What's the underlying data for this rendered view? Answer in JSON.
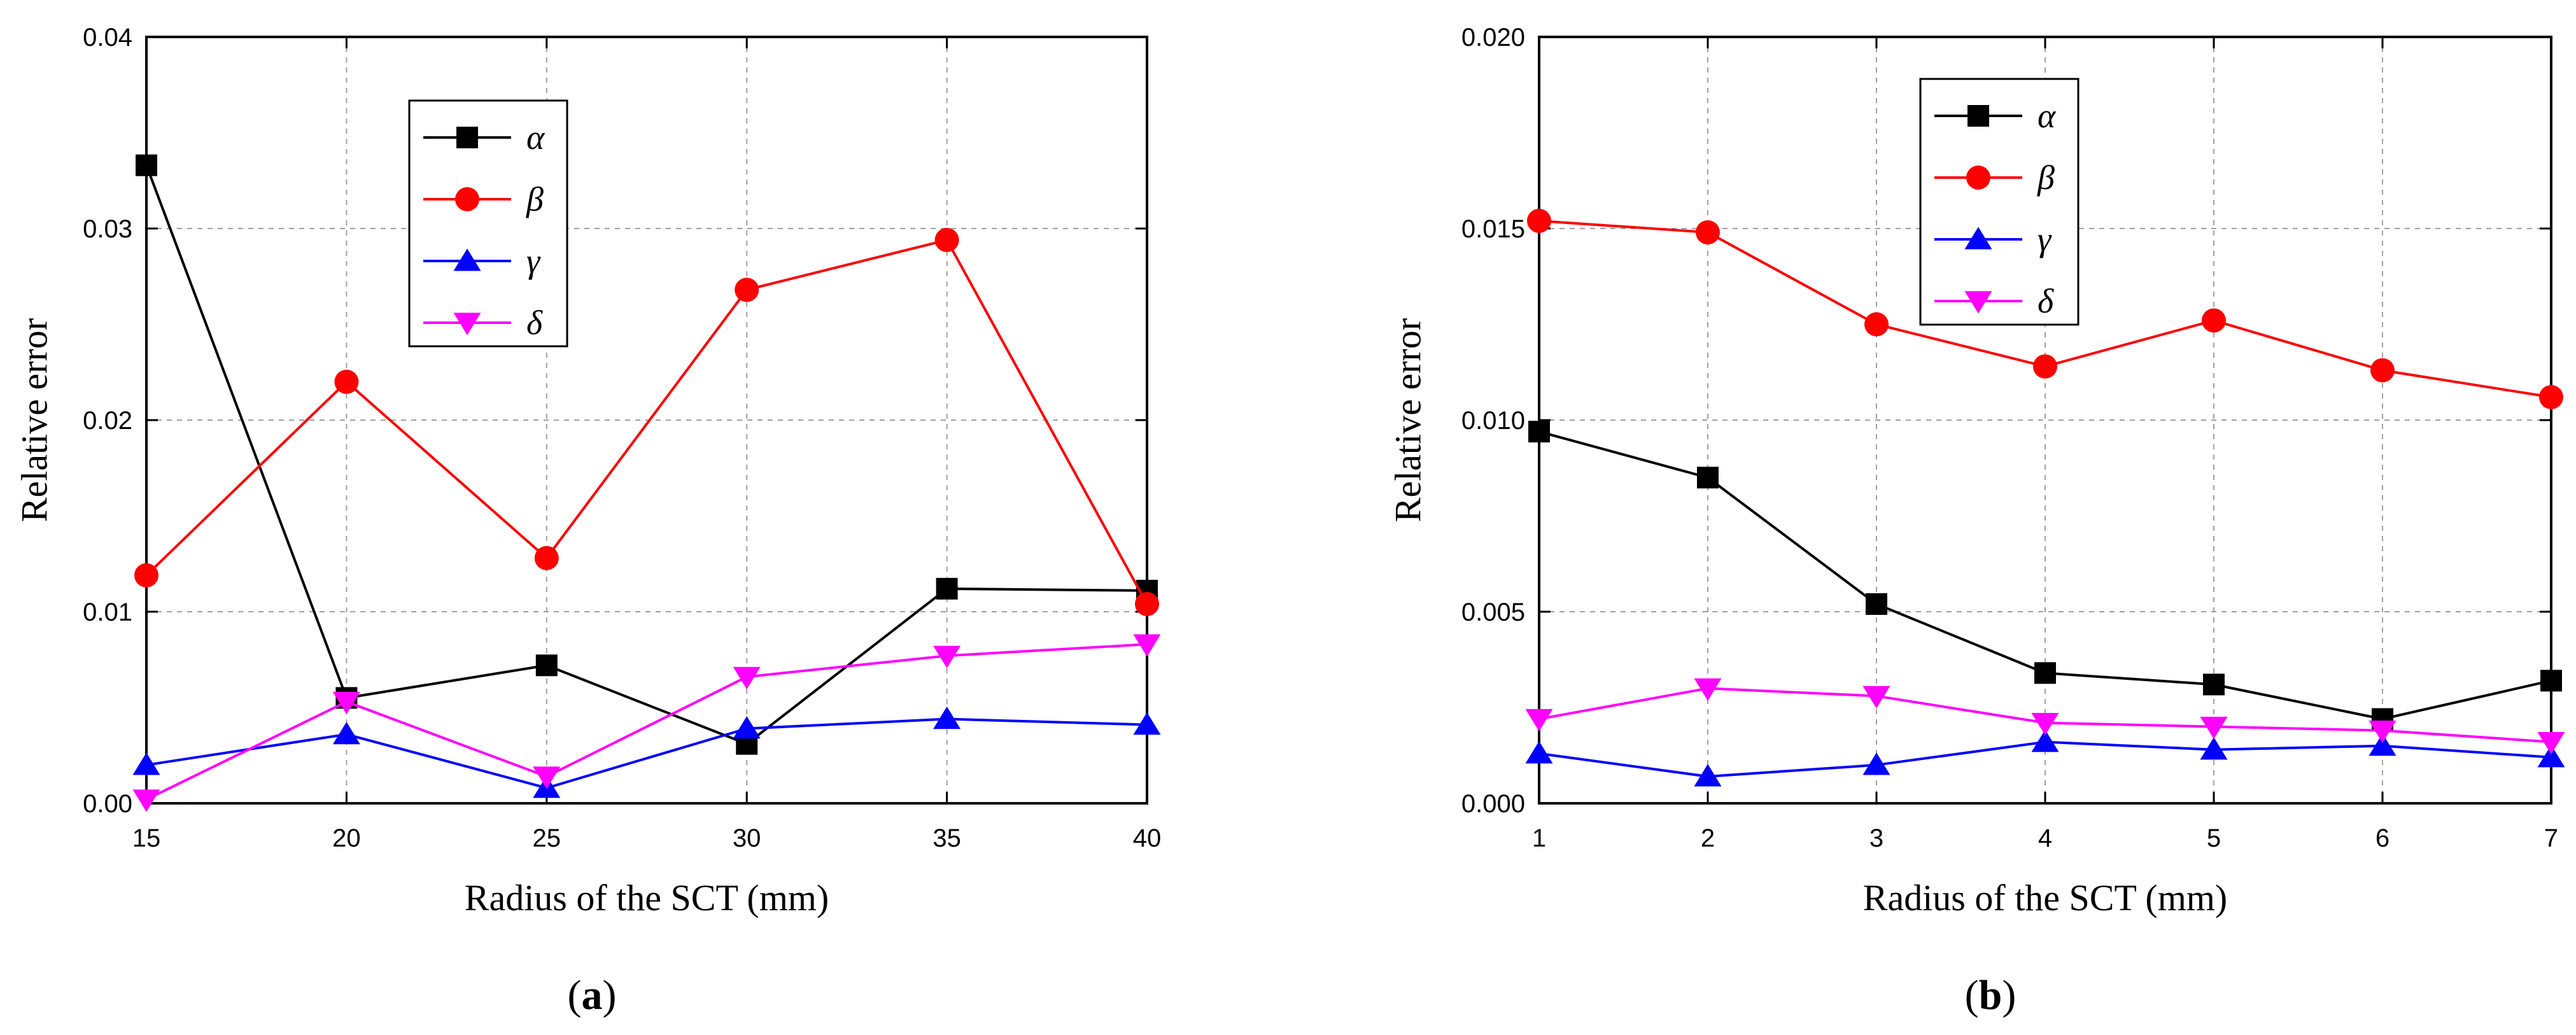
{
  "chart_data": [
    {
      "type": "line",
      "panel": "a",
      "caption": "(a)",
      "caption_letter": "a",
      "xlabel": "Radius of the SCT (mm)",
      "ylabel": "Relative error",
      "xlim": [
        15,
        40
      ],
      "ylim": [
        0,
        0.04
      ],
      "x_ticks": [
        15,
        20,
        25,
        30,
        35,
        40
      ],
      "x_tick_labels": [
        "15",
        "20",
        "25",
        "30",
        "35",
        "40"
      ],
      "y_ticks": [
        0,
        0.01,
        0.02,
        0.03,
        0.04
      ],
      "y_tick_labels": [
        "0.00",
        "0.01",
        "0.02",
        "0.03",
        "0.04"
      ],
      "grid": true,
      "legend_position": "top-left",
      "x": [
        15,
        20,
        25,
        30,
        35,
        40
      ],
      "series": [
        {
          "name": "α",
          "marker": "square",
          "color": "#000000",
          "values": [
            0.0333,
            0.0055,
            0.0072,
            0.0031,
            0.0112,
            0.0111
          ]
        },
        {
          "name": "β",
          "marker": "circle",
          "color": "#ff0000",
          "values": [
            0.0119,
            0.022,
            0.0128,
            0.0268,
            0.0294,
            0.0104
          ]
        },
        {
          "name": "γ",
          "marker": "triangle-up",
          "color": "#0000ff",
          "values": [
            0.002,
            0.0036,
            0.0008,
            0.0039,
            0.0044,
            0.0041
          ]
        },
        {
          "name": "δ",
          "marker": "triangle-down",
          "color": "#ff00ff",
          "values": [
            0.0002,
            0.0053,
            0.0014,
            0.0066,
            0.0077,
            0.0083
          ]
        }
      ]
    },
    {
      "type": "line",
      "panel": "b",
      "caption": "(b)",
      "caption_letter": "b",
      "xlabel": "Radius of the SCT (mm)",
      "ylabel": "Relative error",
      "xlim": [
        1,
        7
      ],
      "ylim": [
        0,
        0.02
      ],
      "x_ticks": [
        1,
        2,
        3,
        4,
        5,
        6,
        7
      ],
      "x_tick_labels": [
        "1",
        "2",
        "3",
        "4",
        "5",
        "6",
        "7"
      ],
      "y_ticks": [
        0,
        0.005,
        0.01,
        0.015,
        0.02
      ],
      "y_tick_labels": [
        "0.000",
        "0.005",
        "0.010",
        "0.015",
        "0.020"
      ],
      "grid": true,
      "legend_position": "top-left",
      "x": [
        1,
        2,
        3,
        4,
        5,
        6,
        7
      ],
      "series": [
        {
          "name": "α",
          "marker": "square",
          "color": "#000000",
          "values": [
            0.0097,
            0.0085,
            0.0052,
            0.0034,
            0.0031,
            0.0022,
            0.0032
          ]
        },
        {
          "name": "β",
          "marker": "circle",
          "color": "#ff0000",
          "values": [
            0.0152,
            0.0149,
            0.0125,
            0.0114,
            0.0126,
            0.0113,
            0.0106
          ]
        },
        {
          "name": "γ",
          "marker": "triangle-up",
          "color": "#0000ff",
          "values": [
            0.0013,
            0.0007,
            0.001,
            0.0016,
            0.0014,
            0.0015,
            0.0012
          ]
        },
        {
          "name": "δ",
          "marker": "triangle-down",
          "color": "#ff00ff",
          "values": [
            0.0022,
            0.003,
            0.0028,
            0.0021,
            0.002,
            0.0019,
            0.0016
          ]
        }
      ]
    }
  ]
}
